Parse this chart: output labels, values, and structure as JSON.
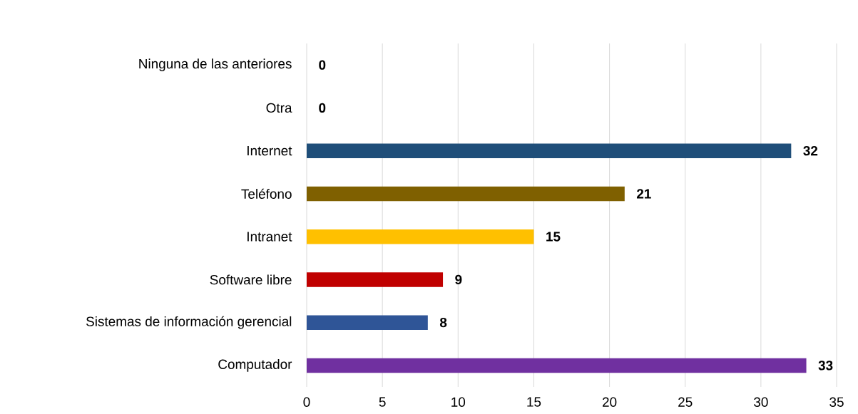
{
  "chart_data": {
    "type": "bar",
    "orientation": "horizontal",
    "categories": [
      "Ninguna de las anteriores",
      "Otra",
      "Internet",
      "Teléfono",
      "Intranet",
      "Software libre",
      "Sistemas de información gerencial",
      "Computador"
    ],
    "values": [
      0,
      0,
      32,
      21,
      15,
      9,
      8,
      33
    ],
    "colors": [
      "#4472c4",
      "#4472c4",
      "#1f4e79",
      "#7f6000",
      "#ffc000",
      "#c00000",
      "#2f5597",
      "#7030a0"
    ],
    "xlim": [
      0,
      35
    ],
    "xticks": [
      0,
      5,
      10,
      15,
      20,
      25,
      30,
      35
    ],
    "grid": "x",
    "data_labels": true
  }
}
